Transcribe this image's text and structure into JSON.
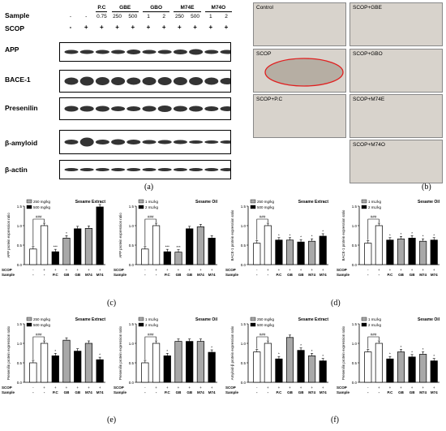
{
  "panel_a": {
    "letter": "(a)",
    "row_sample": "Sample",
    "row_scop": "SCOP",
    "groups": [
      "P.C",
      "GBE",
      "GBO",
      "M74E",
      "M74O"
    ],
    "sample_values": [
      "-",
      "-",
      "0.75",
      "250",
      "500",
      "1",
      "2",
      "250",
      "500",
      "1",
      "2"
    ],
    "scop_values": [
      "-",
      "+",
      "+",
      "+",
      "+",
      "+",
      "+",
      "+",
      "+",
      "+",
      "+"
    ],
    "blots": [
      "APP",
      "BACE-1",
      "Presenilin",
      "β-amyloid",
      "β-actin"
    ]
  },
  "panel_b": {
    "letter": "(b)",
    "tiles": [
      "Control",
      "SCOP+GBE",
      "SCOP",
      "SCOP+GBO",
      "SCOP+P.C",
      "SCOP+M74E",
      "SCOP+M74O"
    ]
  },
  "colors": {
    "filled": "#000000",
    "grey": "#a8a8a8",
    "open": "#ffffff",
    "ellipse": "#e02020"
  },
  "charts": {
    "c1": {
      "title": "Sesame Extract",
      "ylabel": "APP protein expression ratio",
      "legend": [
        "250 mg/kg",
        "500 mg/kg"
      ]
    },
    "c2": {
      "title": "Sesame Oil",
      "ylabel": "APP protein expression ratio",
      "legend": [
        "1 mL/kg",
        "2 mL/kg"
      ]
    },
    "d1": {
      "title": "Sesame Extract",
      "ylabel": "BACE-1 protein expression ratio",
      "legend": [
        "250 mg/kg",
        "500 mg/kg"
      ]
    },
    "d2": {
      "title": "Sesame Oil",
      "ylabel": "BACE-1 protein expression ratio",
      "legend": [
        "1 mL/kg",
        "2 mL/kg"
      ]
    },
    "e1": {
      "title": "Sesame Extract",
      "ylabel": "Presenilin protein expression ratio",
      "legend": [
        "250 mg/kg",
        "500 mg/kg"
      ]
    },
    "e2": {
      "title": "Sesame Oil",
      "ylabel": "Presenilin protein expression ratio",
      "legend": [
        "1 mL/kg",
        "2 mL/kg"
      ]
    },
    "f1": {
      "title": "Sesame Extract",
      "ylabel": "Amyloid-β protein expression ratio",
      "legend": [
        "250 mg/kg",
        "500 mg/kg"
      ]
    },
    "f2": {
      "title": "Sesame Oil",
      "ylabel": "Presenilin protein expression ratio",
      "legend": [
        "1 mL/kg",
        "2 mL/kg"
      ]
    }
  },
  "letters": {
    "c": "(c)",
    "d": "(d)",
    "e": "(e)",
    "f": "(f)"
  },
  "chart_data": [
    {
      "id": "c1",
      "type": "bar",
      "ylim": [
        0,
        1.5
      ],
      "ticks": [
        "0.0",
        "0.5",
        "1.0",
        "1.5"
      ],
      "categories": [
        "-",
        "+",
        "P.C",
        "GB",
        "GB",
        "M74",
        "M74"
      ],
      "values": [
        0.4,
        1.0,
        0.33,
        0.68,
        0.92,
        0.93,
        1.48
      ],
      "fills": [
        "open",
        "open",
        "filled",
        "grey",
        "filled",
        "grey",
        "filled"
      ],
      "marks": [
        "",
        "###",
        "***",
        "*",
        "",
        "",
        ""
      ]
    },
    {
      "id": "c2",
      "type": "bar",
      "ylim": [
        0,
        1.5
      ],
      "ticks": [
        "0.0",
        "0.5",
        "1.0",
        "1.5"
      ],
      "categories": [
        "-",
        "+",
        "P.C",
        "GB",
        "GB",
        "M74",
        "M74"
      ],
      "values": [
        0.4,
        1.0,
        0.33,
        0.32,
        0.92,
        0.97,
        0.68
      ],
      "fills": [
        "open",
        "open",
        "filled",
        "grey",
        "filled",
        "grey",
        "filled"
      ],
      "marks": [
        "",
        "###",
        "***",
        "***",
        "",
        "",
        ""
      ]
    },
    {
      "id": "d1",
      "type": "bar",
      "ylim": [
        0,
        1.5
      ],
      "ticks": [
        "0.0",
        "0.5",
        "1.0",
        "1.5"
      ],
      "categories": [
        "-",
        "+",
        "P.C",
        "GB",
        "GB",
        "M74",
        "M74"
      ],
      "values": [
        0.55,
        1.0,
        0.63,
        0.63,
        0.58,
        0.6,
        0.73
      ],
      "fills": [
        "open",
        "open",
        "filled",
        "grey",
        "filled",
        "grey",
        "filled"
      ],
      "marks": [
        "",
        "###",
        "*",
        "*",
        "*",
        "*",
        "*"
      ]
    },
    {
      "id": "d2",
      "type": "bar",
      "ylim": [
        0,
        1.5
      ],
      "ticks": [
        "0.0",
        "0.5",
        "1.0",
        "1.5"
      ],
      "categories": [
        "-",
        "+",
        "P.C",
        "GB",
        "GB",
        "M74",
        "M74"
      ],
      "values": [
        0.55,
        1.0,
        0.63,
        0.66,
        0.68,
        0.6,
        0.63
      ],
      "fills": [
        "open",
        "open",
        "filled",
        "grey",
        "filled",
        "grey",
        "filled"
      ],
      "marks": [
        "",
        "###",
        "*",
        "*",
        "*",
        "*",
        "*"
      ]
    },
    {
      "id": "e1",
      "type": "bar",
      "ylim": [
        0,
        1.5
      ],
      "ticks": [
        "0.0",
        "0.5",
        "1.0",
        "1.5"
      ],
      "categories": [
        "-",
        "+",
        "P.C",
        "GB",
        "GB",
        "M74",
        "M74"
      ],
      "values": [
        0.5,
        1.0,
        0.68,
        1.08,
        0.8,
        1.0,
        0.58
      ],
      "fills": [
        "open",
        "open",
        "filled",
        "grey",
        "filled",
        "grey",
        "filled"
      ],
      "marks": [
        "",
        "###",
        "*",
        "",
        "",
        "",
        "*"
      ]
    },
    {
      "id": "e2",
      "type": "bar",
      "ylim": [
        0,
        1.5
      ],
      "ticks": [
        "0.0",
        "0.5",
        "1.0",
        "1.5"
      ],
      "categories": [
        "-",
        "+",
        "P.C",
        "GB",
        "GB",
        "M74",
        "M74"
      ],
      "values": [
        0.5,
        1.0,
        0.68,
        1.05,
        1.05,
        1.05,
        0.77
      ],
      "fills": [
        "open",
        "open",
        "filled",
        "grey",
        "filled",
        "grey",
        "filled"
      ],
      "marks": [
        "",
        "###",
        "*",
        "",
        "",
        "",
        "*"
      ]
    },
    {
      "id": "f1",
      "type": "bar",
      "ylim": [
        0,
        1.5
      ],
      "ticks": [
        "0.0",
        "0.5",
        "1.0",
        "1.5"
      ],
      "categories": [
        "-",
        "+",
        "P.C",
        "GB",
        "GB",
        "M74",
        "M74"
      ],
      "values": [
        0.78,
        1.0,
        0.6,
        1.15,
        0.82,
        0.68,
        0.55
      ],
      "fills": [
        "open",
        "open",
        "filled",
        "grey",
        "filled",
        "grey",
        "filled"
      ],
      "marks": [
        "",
        "###",
        "*",
        "",
        "*",
        "*",
        "*"
      ]
    },
    {
      "id": "f2",
      "type": "bar",
      "ylim": [
        0,
        1.5
      ],
      "ticks": [
        "0.0",
        "0.5",
        "1.0",
        "1.5"
      ],
      "categories": [
        "-",
        "+",
        "P.C",
        "GB",
        "GB",
        "M74",
        "M74"
      ],
      "values": [
        0.78,
        1.0,
        0.6,
        0.78,
        0.65,
        0.72,
        0.55
      ],
      "fills": [
        "open",
        "open",
        "filled",
        "grey",
        "filled",
        "grey",
        "filled"
      ],
      "marks": [
        "",
        "###",
        "*",
        "*",
        "*",
        "*",
        "*"
      ]
    }
  ]
}
